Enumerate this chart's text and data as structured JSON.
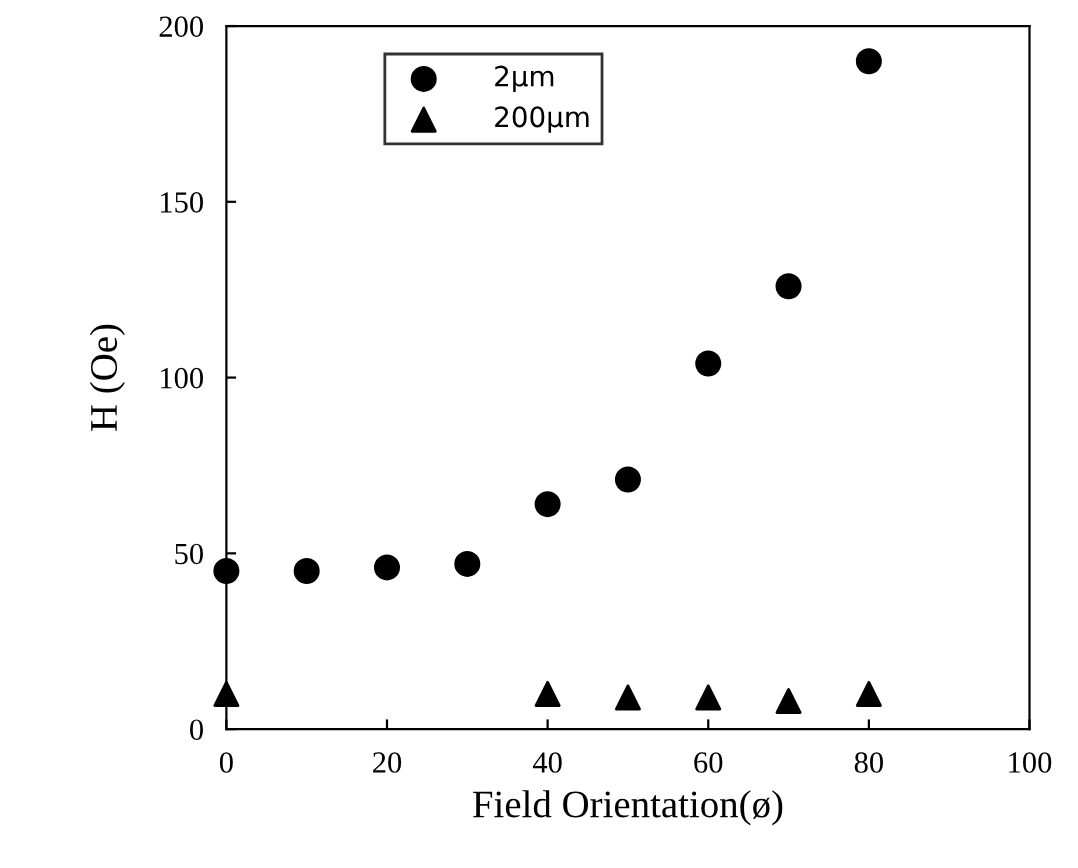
{
  "chart_data": {
    "type": "scatter",
    "xlabel": "Field Orientation(ø)",
    "ylabel": "H (Oe)",
    "xlim": [
      0,
      100
    ],
    "xticks": [
      0,
      20,
      40,
      60,
      80,
      100
    ],
    "ylim": [
      0,
      200
    ],
    "yticks": [
      0,
      50,
      100,
      150,
      200
    ],
    "grid": false,
    "legend": "top left",
    "series": [
      {
        "name": "2μm",
        "color": "#000000",
        "marker": "circle",
        "x": [
          0,
          10,
          20,
          30,
          40,
          50,
          60,
          70,
          80
        ],
        "values": [
          45,
          45,
          46,
          47,
          64,
          71,
          104,
          126,
          190
        ]
      },
      {
        "name": "200μm",
        "color": "#000000",
        "marker": "triangle",
        "x": [
          0,
          40,
          50,
          60,
          70,
          80
        ],
        "values": [
          10,
          10,
          9,
          9,
          8,
          10
        ]
      }
    ]
  }
}
